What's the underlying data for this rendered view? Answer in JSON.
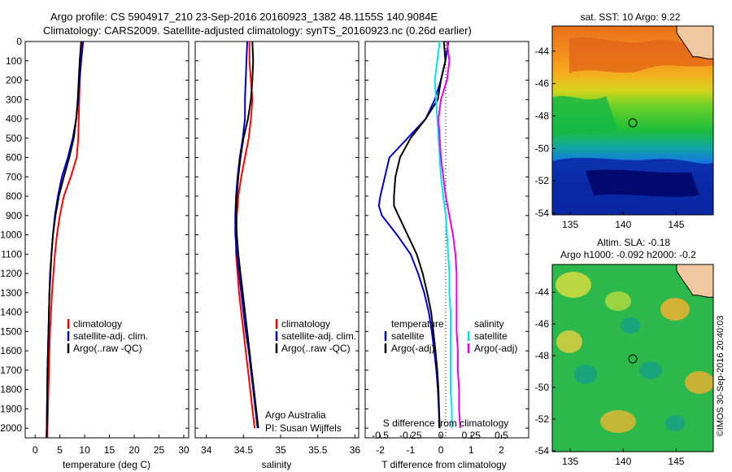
{
  "header": {
    "line1": "Argo profile: CS 5904917_210 23-Sep-2016 20160923_1382 48.1155S 140.9084E",
    "line2": "Climatology: CARS2009. Satellite-adjusted climatology: synTS_20160923.nc (0.26d earlier)"
  },
  "colors": {
    "climatology": "#ff0000",
    "satellite": "#0000cc",
    "argo": "#000000",
    "sat_salinity": "#00e5ee",
    "argo_salinity": "#ee00ee"
  },
  "depth_ticks": [
    "0",
    "100",
    "200",
    "300",
    "400",
    "500",
    "600",
    "700",
    "800",
    "900",
    "1000",
    "1100",
    "1200",
    "1300",
    "1400",
    "1500",
    "1600",
    "1700",
    "1800",
    "1900",
    "2000"
  ],
  "panels": {
    "temperature": {
      "xlabel": "temperature (deg C)",
      "xticks": [
        "0",
        "5",
        "10",
        "15",
        "20",
        "25",
        "30"
      ],
      "legend": [
        "climatology",
        "satellite-adj. clim.",
        "Argo(..raw -QC)"
      ]
    },
    "salinity": {
      "xlabel": "salinity",
      "xticks": [
        "34",
        "34.5",
        "35",
        "35.5",
        "36"
      ],
      "legend": [
        "climatology",
        "satellite-adj. clim.",
        "Argo(..raw -QC)"
      ],
      "annotation": [
        "Argo Australia",
        "PI: Susan Wijffels"
      ]
    },
    "difference": {
      "xlabel": "T difference from climatology",
      "xticks": [
        "-2",
        "-1",
        "0",
        "1",
        "2"
      ],
      "s_label": "S difference from climatology",
      "s_ticks": [
        "-0.5",
        "-0.25",
        "0",
        "0.25",
        "0.5"
      ],
      "legend_left_title": "temperature",
      "legend_left": [
        "satellite",
        "Argo(-adj)"
      ],
      "legend_right_title": "salinity",
      "legend_right": [
        "satellite",
        "Argo(-adj)"
      ]
    },
    "sst_map": {
      "title": "sat. SST: 10 Argo: 9.22",
      "yticks": [
        "-44",
        "-46",
        "-48",
        "-50",
        "-52",
        "-54"
      ],
      "xticks": [
        "135",
        "140",
        "145"
      ]
    },
    "sla_map": {
      "title1": "Altim. SLA: -0.18",
      "title2": "Argo h1000: -0.092 h2000: -0.2",
      "yticks": [
        "-44",
        "-46",
        "-48",
        "-50",
        "-52",
        "-54"
      ],
      "xticks": [
        "135",
        "140",
        "145"
      ]
    }
  },
  "watermark": "©IMOS 30-Sep-2016 20:40:03",
  "chart_data": [
    {
      "type": "line",
      "panel": "temperature",
      "xlabel": "temperature (deg C)",
      "ylabel": "",
      "xlim": [
        -2,
        31
      ],
      "ylim": [
        2050,
        0
      ],
      "series": [
        {
          "name": "climatology",
          "depth": [
            0,
            100,
            200,
            300,
            400,
            500,
            600,
            700,
            800,
            900,
            1000,
            1100,
            1200,
            1300,
            1400,
            1500,
            1600,
            1700,
            1800,
            1900,
            2000,
            2050
          ],
          "values": [
            9.4,
            9.2,
            9.0,
            8.9,
            8.8,
            8.7,
            8.4,
            7.2,
            5.8,
            5.0,
            4.4,
            4.0,
            3.7,
            3.4,
            3.2,
            3.0,
            2.9,
            2.8,
            2.7,
            2.6,
            2.5,
            2.45
          ]
        },
        {
          "name": "satellite-adj. clim.",
          "depth": [
            0,
            100,
            200,
            300,
            400,
            500,
            600,
            700,
            800,
            900,
            1000,
            1100,
            1200,
            1300,
            1400,
            1500,
            1600,
            1700,
            1800,
            1900,
            2000,
            2050
          ],
          "values": [
            9.7,
            9.3,
            9.0,
            8.7,
            8.3,
            7.6,
            6.6,
            5.4,
            4.6,
            4.0,
            3.6,
            3.3,
            3.0,
            2.9,
            2.8,
            2.7,
            2.6,
            2.5,
            2.45,
            2.4,
            2.35,
            2.3
          ]
        },
        {
          "name": "Argo(..raw -QC)",
          "depth": [
            0,
            100,
            200,
            300,
            400,
            500,
            600,
            700,
            800,
            900,
            1000,
            1100,
            1200,
            1300,
            1400,
            1500,
            1600,
            1700,
            1800,
            1900,
            2000,
            2050
          ],
          "values": [
            9.3,
            9.0,
            8.8,
            8.6,
            8.3,
            7.8,
            6.9,
            5.8,
            4.8,
            4.1,
            3.6,
            3.3,
            3.1,
            2.9,
            2.8,
            2.7,
            2.6,
            2.5,
            2.45,
            2.4,
            2.35,
            2.3
          ]
        }
      ]
    },
    {
      "type": "line",
      "panel": "salinity",
      "xlabel": "salinity",
      "ylabel": "",
      "xlim": [
        33.85,
        36.05
      ],
      "ylim": [
        2050,
        0
      ],
      "series": [
        {
          "name": "climatology",
          "depth": [
            0,
            100,
            200,
            300,
            400,
            500,
            600,
            700,
            800,
            900,
            1000,
            1100,
            1200,
            1300,
            1400,
            1500,
            1600,
            1700,
            1800,
            1900,
            2000
          ],
          "values": [
            34.58,
            34.58,
            34.6,
            34.62,
            34.6,
            34.57,
            34.52,
            34.47,
            34.43,
            34.41,
            34.4,
            34.4,
            34.42,
            34.44,
            34.47,
            34.5,
            34.53,
            34.56,
            34.59,
            34.62,
            34.65
          ]
        },
        {
          "name": "satellite-adj. clim.",
          "depth": [
            0,
            100,
            200,
            300,
            400,
            500,
            600,
            700,
            800,
            900,
            1000,
            1100,
            1200,
            1300,
            1400,
            1500,
            1600,
            1700,
            1800,
            1900,
            2000
          ],
          "values": [
            34.55,
            34.54,
            34.53,
            34.52,
            34.52,
            34.49,
            34.45,
            34.42,
            34.4,
            34.39,
            34.39,
            34.41,
            34.44,
            34.47,
            34.5,
            34.53,
            34.57,
            34.6,
            34.63,
            34.66,
            34.69
          ]
        },
        {
          "name": "Argo(..raw -QC)",
          "depth": [
            0,
            100,
            200,
            300,
            400,
            500,
            600,
            700,
            800,
            900,
            1000,
            1100,
            1200,
            1300,
            1400,
            1500,
            1600,
            1700,
            1800,
            1900,
            2000
          ],
          "values": [
            34.62,
            34.63,
            34.62,
            34.6,
            34.56,
            34.5,
            34.46,
            34.43,
            34.41,
            34.4,
            34.41,
            34.43,
            34.46,
            34.49,
            34.52,
            34.55,
            34.58,
            34.61,
            34.64,
            34.67,
            34.7
          ]
        }
      ]
    },
    {
      "type": "line",
      "panel": "difference",
      "xlabel": "T difference from climatology",
      "ylabel": "",
      "xlim": [
        -2.5,
        2.9
      ],
      "ylim": [
        2050,
        0
      ],
      "series": [
        {
          "name": "temperature satellite",
          "depth": [
            0,
            100,
            200,
            300,
            400,
            500,
            600,
            700,
            800,
            850,
            900,
            1000,
            1100,
            1200,
            1300,
            1400,
            1500,
            1600,
            1700,
            1800,
            1900,
            2000
          ],
          "values": [
            0.25,
            0.15,
            0.0,
            -0.2,
            -0.5,
            -1.1,
            -1.7,
            -1.85,
            -2.0,
            -2.05,
            -1.95,
            -1.45,
            -1.0,
            -0.75,
            -0.55,
            -0.4,
            -0.3,
            -0.22,
            -0.15,
            -0.1,
            -0.07,
            -0.05
          ]
        },
        {
          "name": "temperature Argo(-adj)",
          "depth": [
            0,
            100,
            200,
            300,
            400,
            500,
            600,
            700,
            800,
            850,
            900,
            1000,
            1100,
            1200,
            1300,
            1400,
            1500,
            1600,
            1700,
            1800,
            1900,
            2000
          ],
          "values": [
            0.1,
            0.15,
            0.0,
            -0.1,
            -0.5,
            -1.0,
            -1.35,
            -1.5,
            -1.55,
            -1.55,
            -1.4,
            -1.1,
            -0.8,
            -0.6,
            -0.45,
            -0.32,
            -0.25,
            -0.18,
            -0.12,
            -0.08,
            -0.06,
            -0.04
          ]
        },
        {
          "name": "salinity satellite",
          "depth": [
            0,
            100,
            200,
            300,
            400,
            500,
            600,
            700,
            800,
            900,
            1000,
            1100,
            1200,
            1300,
            1400,
            1500,
            1600,
            1700,
            1800,
            1900,
            2000
          ],
          "values": [
            -0.01,
            -0.03,
            -0.05,
            -0.04,
            -0.03,
            -0.02,
            -0.01,
            0.0,
            0.02,
            0.04,
            0.05,
            0.06,
            0.07,
            0.07,
            0.08,
            0.08,
            0.08,
            0.08,
            0.08,
            0.09,
            0.09
          ]
        },
        {
          "name": "salinity Argo(-adj)",
          "depth": [
            0,
            100,
            200,
            300,
            400,
            500,
            600,
            700,
            800,
            900,
            1000,
            1100,
            1200,
            1300,
            1400,
            1500,
            1600,
            1700,
            1800,
            1900,
            2000
          ],
          "values": [
            0.05,
            0.07,
            0.05,
            0.0,
            -0.02,
            -0.01,
            0.0,
            0.02,
            0.04,
            0.07,
            0.1,
            0.12,
            0.13,
            0.13,
            0.13,
            0.13,
            0.14,
            0.14,
            0.15,
            0.15,
            0.16
          ]
        }
      ],
      "s_xlim": [
        -0.625,
        0.725
      ]
    }
  ]
}
